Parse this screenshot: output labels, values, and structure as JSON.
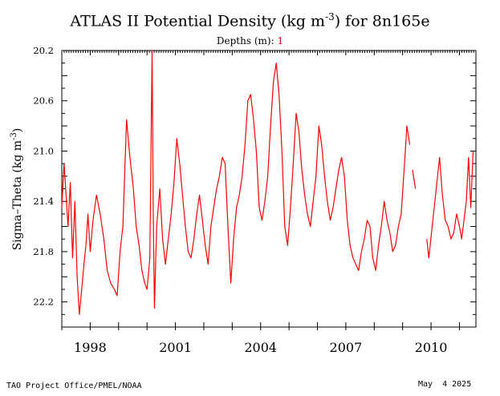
{
  "title": {
    "prefix": "ATLAS II Potential Density (kg m",
    "exponent": "-3",
    "suffix": ") for 8n165e"
  },
  "subtitle": {
    "label": "Depths (m): ",
    "depth": "1"
  },
  "footer": {
    "credit": "TAO Project Office/PMEL/NOAA",
    "date": "May  4 2025"
  },
  "colors": {
    "series": "#ff0000",
    "axes": "#000000"
  },
  "chart_data": {
    "type": "line",
    "ylabel": "Sigma-Theta (kg m-3)",
    "ylabel_parts": {
      "main": "Sigma–Theta (kg m",
      "exponent": "-3",
      "close": ")"
    },
    "y_axis_reversed": true,
    "ylim": [
      20.2,
      22.4
    ],
    "xlim": [
      "1997-01",
      "2011-07"
    ],
    "y_tick_labels": [
      "20.2",
      "20.6",
      "21.0",
      "21.4",
      "21.8",
      "22.2"
    ],
    "x_tick_labels": [
      "1998",
      "2001",
      "2004",
      "2007",
      "2010"
    ],
    "series": [
      {
        "depth_m": 1,
        "x": [
          1997.0,
          1997.08,
          1997.15,
          1997.22,
          1997.3,
          1997.38,
          1997.46,
          1997.54,
          1997.62,
          1997.7,
          1997.78,
          1997.85,
          1997.92,
          1998.0,
          1998.1,
          1998.22,
          1998.35,
          1998.48,
          1998.6,
          1998.72,
          1998.85,
          1998.95,
          1999.05,
          1999.15,
          1999.28,
          1999.4,
          1999.52,
          1999.62,
          1999.72,
          1999.82,
          1999.92,
          2000.0,
          2000.1,
          2000.18,
          2000.22,
          2000.26,
          2000.34,
          2000.45,
          2000.55,
          2000.65,
          2000.75,
          2000.85,
          2000.95,
          2001.05,
          2001.15,
          2001.25,
          2001.35,
          2001.45,
          2001.55,
          2001.65,
          2001.75,
          2001.85,
          2001.95,
          2002.05,
          2002.15,
          2002.25,
          2002.35,
          2002.45,
          2002.55,
          2002.65,
          2002.75,
          2002.85,
          2002.95,
          2003.05,
          2003.15,
          2003.25,
          2003.35,
          2003.45,
          2003.55,
          2003.65,
          2003.75,
          2003.85,
          2003.95,
          2004.05,
          2004.15,
          2004.25,
          2004.35,
          2004.45,
          2004.55,
          2004.65,
          2004.75,
          2004.85,
          2004.95,
          2005.05,
          2005.15,
          2005.25,
          2005.35,
          2005.45,
          2005.55,
          2005.65,
          2005.75,
          2005.85,
          2005.95,
          2006.05,
          2006.15,
          2006.25,
          2006.35,
          2006.45,
          2006.55,
          2006.65,
          2006.75,
          2006.85,
          2006.95,
          2007.05,
          2007.15,
          2007.25,
          2007.35,
          2007.45,
          2007.55,
          2007.65,
          2007.75,
          2007.85,
          2007.95,
          2008.05,
          2008.15,
          2008.25,
          2008.35,
          2008.45,
          2008.55,
          2008.65,
          2008.75,
          2008.85,
          2008.95,
          2009.05,
          2009.15,
          2009.25,
          2009.35,
          2009.45,
          2009.85,
          2009.92,
          2010.3,
          2010.4,
          2010.5,
          2010.6,
          2010.7,
          2010.8,
          2010.9,
          2011.0,
          2011.08,
          2011.16,
          2011.24,
          2011.32,
          2011.4,
          2011.48
        ],
        "y": [
          21.45,
          21.1,
          21.35,
          21.6,
          21.25,
          21.85,
          21.4,
          22.0,
          22.3,
          22.1,
          21.9,
          21.75,
          21.5,
          21.8,
          21.55,
          21.35,
          21.5,
          21.7,
          21.95,
          22.05,
          22.1,
          22.15,
          21.8,
          21.6,
          20.75,
          21.05,
          21.3,
          21.6,
          21.75,
          21.95,
          22.05,
          22.1,
          21.85,
          20.2,
          21.5,
          22.25,
          21.6,
          21.3,
          21.7,
          21.9,
          21.7,
          21.5,
          21.25,
          20.9,
          21.1,
          21.35,
          21.6,
          21.8,
          21.85,
          21.7,
          21.5,
          21.35,
          21.55,
          21.75,
          21.9,
          21.6,
          21.45,
          21.3,
          21.2,
          21.05,
          21.1,
          21.6,
          22.05,
          21.7,
          21.45,
          21.35,
          21.2,
          20.95,
          20.6,
          20.55,
          20.75,
          21.0,
          21.45,
          21.55,
          21.4,
          21.2,
          20.8,
          20.45,
          20.3,
          20.55,
          21.0,
          21.6,
          21.75,
          21.45,
          21.1,
          20.7,
          20.85,
          21.15,
          21.35,
          21.5,
          21.6,
          21.4,
          21.2,
          20.8,
          20.95,
          21.2,
          21.4,
          21.55,
          21.45,
          21.3,
          21.15,
          21.05,
          21.2,
          21.55,
          21.75,
          21.85,
          21.9,
          21.95,
          21.8,
          21.7,
          21.55,
          21.6,
          21.85,
          21.95,
          21.75,
          21.6,
          21.4,
          21.55,
          21.65,
          21.8,
          21.75,
          21.6,
          21.5,
          21.15,
          20.8,
          20.95,
          21.15,
          21.3,
          21.7,
          21.85,
          21.05,
          21.35,
          21.55,
          21.6,
          21.7,
          21.65,
          21.5,
          21.6,
          21.7,
          21.55,
          21.4,
          21.05,
          21.45,
          21.0
        ],
        "breaks_after_index": [
          125,
          127
        ]
      }
    ]
  }
}
